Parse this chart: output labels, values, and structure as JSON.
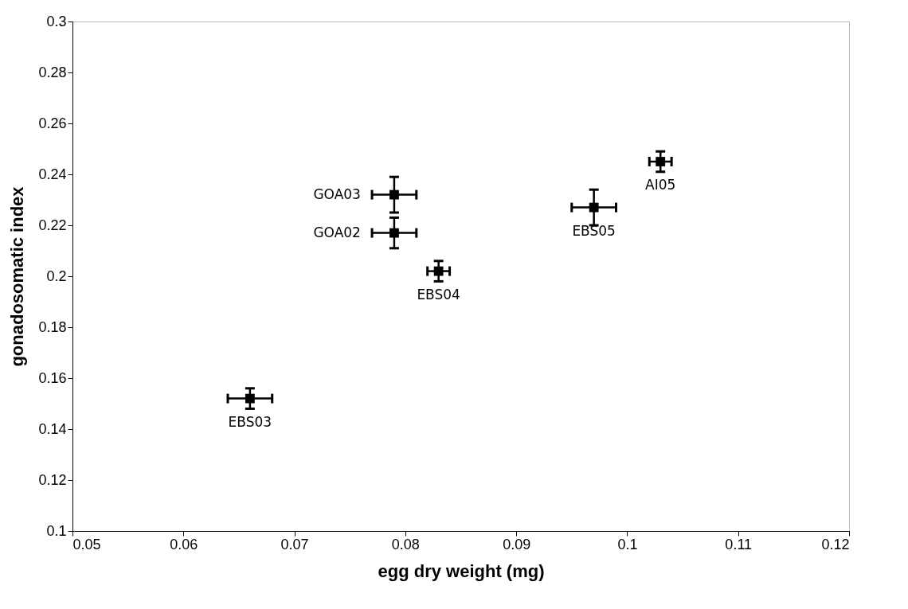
{
  "chart_data": {
    "type": "scatter",
    "xlabel": "egg dry weight (mg)",
    "ylabel": "gonadosomatic index",
    "x": [
      0.066,
      0.079,
      0.079,
      0.083,
      0.097,
      0.103
    ],
    "series": [
      {
        "color": "#000000",
        "values": [
          0.152,
          0.232,
          0.217,
          0.202,
          0.227,
          0.245
        ],
        "errors": [
          0.004,
          0.007,
          0.006,
          0.004,
          0.007,
          0.004
        ],
        "xerrors": [
          0.002,
          0.002,
          0.002,
          0.001,
          0.002,
          0.001
        ]
      }
    ],
    "marker": "square",
    "xlim": [
      0.05,
      0.12
    ],
    "xticks": [
      0.05,
      0.06,
      0.07,
      0.08,
      0.09,
      0.1,
      0.11,
      0.12
    ],
    "ylim": [
      0.1,
      0.3
    ],
    "yticks": [
      0.1,
      0.12,
      0.14,
      0.16,
      0.18,
      0.2,
      0.22,
      0.24,
      0.26,
      0.28,
      0.3
    ],
    "grid": false,
    "annotations": [
      {
        "text": "EBS03",
        "x": 0.066,
        "y": 0.152
      },
      {
        "text": "GOA03",
        "x": 0.079,
        "y": 0.232
      },
      {
        "text": "GOA02",
        "x": 0.079,
        "y": 0.217
      },
      {
        "text": "EBS04",
        "x": 0.083,
        "y": 0.202
      },
      {
        "text": "EBS05",
        "x": 0.097,
        "y": 0.227
      },
      {
        "text": "AI05",
        "x": 0.103,
        "y": 0.245
      }
    ]
  }
}
